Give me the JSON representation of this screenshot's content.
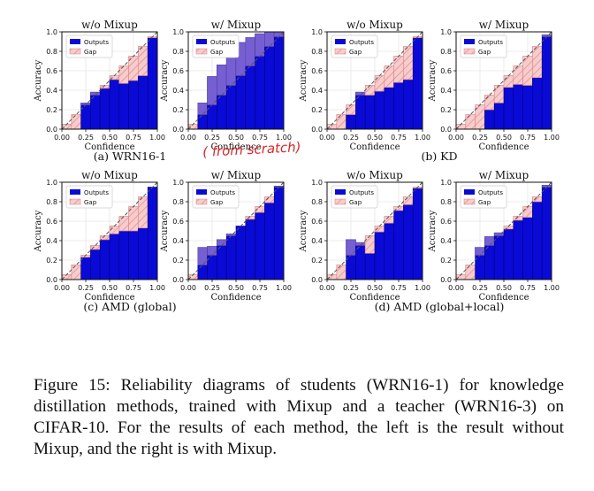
{
  "colors": {
    "outputs": "#0a0ad6",
    "gap_fill": "#f7cccc",
    "gap_edge": "#e08a8a",
    "overlap": "#8a6fd2",
    "handnote": "#d6262b"
  },
  "annotation": {
    "handwritten": "( from scratch)"
  },
  "caption": "Figure 15: Reliability diagrams of students (WRN16-1) for knowledge distillation methods, trained with Mixup and a teacher (WRN16-3) on CIFAR-10. For the results of each method, the left is the result without Mixup, and the right is with Mixup.",
  "groups": [
    {
      "label": "(a) WRN16-1"
    },
    {
      "label": "(b) KD"
    },
    {
      "label": "(c) AMD (global)"
    },
    {
      "label": "(d) AMD (global+local)"
    }
  ],
  "chart_data": [
    {
      "type": "bar",
      "group": "(a) WRN16-1",
      "title": "w/o Mixup",
      "xlabel": "Confidence",
      "ylabel": "Accuracy",
      "legend": [
        "Outputs",
        "Gap"
      ],
      "legend_position": "top-left",
      "xlim": [
        0,
        1
      ],
      "ylim": [
        0,
        1
      ],
      "grid": true,
      "xticks": [
        "0.00",
        "0.25",
        "0.50",
        "0.75",
        "1.00"
      ],
      "yticks": [
        "0.0",
        "0.2",
        "0.4",
        "0.6",
        "0.8",
        "1.0"
      ],
      "bin_centers": [
        0.05,
        0.15,
        0.25,
        0.35,
        0.45,
        0.55,
        0.65,
        0.75,
        0.85,
        0.95
      ],
      "outputs": [
        0,
        0,
        0.27,
        0.38,
        0.42,
        0.51,
        0.47,
        0.5,
        0.55,
        0.94
      ]
    },
    {
      "type": "bar",
      "group": "(a) WRN16-1",
      "title": "w/ Mixup",
      "xlabel": "Confidence",
      "ylabel": "Accuracy",
      "legend": [
        "Outputs",
        "Gap"
      ],
      "legend_position": "top-left",
      "xlim": [
        0,
        1
      ],
      "ylim": [
        0,
        1
      ],
      "grid": true,
      "xticks": [
        "0.00",
        "0.25",
        "0.50",
        "0.75",
        "1.00"
      ],
      "yticks": [
        "0.0",
        "0.2",
        "0.4",
        "0.6",
        "0.8",
        "1.0"
      ],
      "bin_centers": [
        0.05,
        0.15,
        0.25,
        0.35,
        0.45,
        0.55,
        0.65,
        0.75,
        0.85,
        0.95
      ],
      "outputs": [
        0,
        0.27,
        0.54,
        0.66,
        0.8,
        0.89,
        0.94,
        0.98,
        1.0,
        1.0
      ]
    },
    {
      "type": "bar",
      "group": "(b) KD",
      "title": "w/o Mixup",
      "xlabel": "Confidence",
      "ylabel": "Accuracy",
      "legend": [
        "Outputs",
        "Gap"
      ],
      "legend_position": "top-left",
      "xlim": [
        0,
        1
      ],
      "ylim": [
        0,
        1
      ],
      "grid": true,
      "xticks": [
        "0.00",
        "0.25",
        "0.50",
        "0.75",
        "1.00"
      ],
      "yticks": [
        "0.0",
        "0.2",
        "0.4",
        "0.6",
        "0.8",
        "1.0"
      ],
      "bin_centers": [
        0.05,
        0.15,
        0.25,
        0.35,
        0.45,
        0.55,
        0.65,
        0.75,
        0.85,
        0.95
      ],
      "outputs": [
        0,
        0,
        0.15,
        0.38,
        0.35,
        0.39,
        0.43,
        0.48,
        0.51,
        0.94
      ]
    },
    {
      "type": "bar",
      "group": "(b) KD",
      "title": "w/ Mixup",
      "xlabel": "Confidence",
      "ylabel": "Accuracy",
      "legend": [
        "Outputs",
        "Gap"
      ],
      "legend_position": "top-left",
      "xlim": [
        0,
        1
      ],
      "ylim": [
        0,
        1
      ],
      "grid": true,
      "xticks": [
        "0.00",
        "0.25",
        "0.50",
        "0.75",
        "1.00"
      ],
      "yticks": [
        "0.0",
        "0.2",
        "0.4",
        "0.6",
        "0.8",
        "1.0"
      ],
      "bin_centers": [
        0.05,
        0.15,
        0.25,
        0.35,
        0.45,
        0.55,
        0.65,
        0.75,
        0.85,
        0.95
      ],
      "outputs": [
        0,
        0,
        0,
        0.2,
        0.27,
        0.43,
        0.46,
        0.45,
        0.53,
        0.97
      ]
    },
    {
      "type": "bar",
      "group": "(c) AMD (global)",
      "title": "w/o Mixup",
      "xlabel": "Confidence",
      "ylabel": "Accuracy",
      "legend": [
        "Outputs",
        "Gap"
      ],
      "legend_position": "top-left",
      "xlim": [
        0,
        1
      ],
      "ylim": [
        0,
        1
      ],
      "grid": true,
      "xticks": [
        "0.00",
        "0.25",
        "0.50",
        "0.75",
        "1.00"
      ],
      "yticks": [
        "0.0",
        "0.2",
        "0.4",
        "0.6",
        "0.8",
        "1.0"
      ],
      "bin_centers": [
        0.05,
        0.15,
        0.25,
        0.35,
        0.45,
        0.55,
        0.65,
        0.75,
        0.85,
        0.95
      ],
      "outputs": [
        0,
        0,
        0.23,
        0.31,
        0.41,
        0.47,
        0.5,
        0.5,
        0.53,
        0.95
      ]
    },
    {
      "type": "bar",
      "group": "(c) AMD (global)",
      "title": "w/ Mixup",
      "xlabel": "Confidence",
      "ylabel": "Accuracy",
      "legend": [
        "Outputs",
        "Gap"
      ],
      "legend_position": "top-left",
      "xlim": [
        0,
        1
      ],
      "ylim": [
        0,
        1
      ],
      "grid": true,
      "xticks": [
        "0.00",
        "0.25",
        "0.50",
        "0.75",
        "1.00"
      ],
      "yticks": [
        "0.0",
        "0.2",
        "0.4",
        "0.6",
        "0.8",
        "1.0"
      ],
      "bin_centers": [
        0.05,
        0.15,
        0.25,
        0.35,
        0.45,
        0.55,
        0.65,
        0.75,
        0.85,
        0.95
      ],
      "outputs": [
        0,
        0.33,
        0.34,
        0.41,
        0.47,
        0.55,
        0.62,
        0.69,
        0.79,
        0.96
      ]
    },
    {
      "type": "bar",
      "group": "(d) AMD (global+local)",
      "title": "w/o Mixup",
      "xlabel": "Confidence",
      "ylabel": "Accuracy",
      "legend": [
        "Outputs",
        "Gap"
      ],
      "legend_position": "top-left",
      "xlim": [
        0,
        1
      ],
      "ylim": [
        0,
        1
      ],
      "grid": true,
      "xticks": [
        "0.00",
        "0.25",
        "0.50",
        "0.75",
        "1.00"
      ],
      "yticks": [
        "0.0",
        "0.2",
        "0.4",
        "0.6",
        "0.8",
        "1.0"
      ],
      "bin_centers": [
        0.05,
        0.15,
        0.25,
        0.35,
        0.45,
        0.55,
        0.65,
        0.75,
        0.85,
        0.95
      ],
      "outputs": [
        0,
        0,
        0.41,
        0.38,
        0.27,
        0.49,
        0.58,
        0.71,
        0.77,
        0.94
      ]
    },
    {
      "type": "bar",
      "group": "(d) AMD (global+local)",
      "title": "w/ Mixup",
      "xlabel": "Confidence",
      "ylabel": "Accuracy",
      "legend": [
        "Outputs",
        "Gap"
      ],
      "legend_position": "top-left",
      "xlim": [
        0,
        1
      ],
      "ylim": [
        0,
        1
      ],
      "grid": true,
      "xticks": [
        "0.00",
        "0.25",
        "0.50",
        "0.75",
        "1.00"
      ],
      "yticks": [
        "0.0",
        "0.2",
        "0.4",
        "0.6",
        "0.8",
        "1.0"
      ],
      "bin_centers": [
        0.05,
        0.15,
        0.25,
        0.35,
        0.45,
        0.55,
        0.65,
        0.75,
        0.85,
        0.95
      ],
      "outputs": [
        0,
        0,
        0.33,
        0.44,
        0.48,
        0.52,
        0.61,
        0.64,
        0.8,
        0.97
      ]
    }
  ]
}
